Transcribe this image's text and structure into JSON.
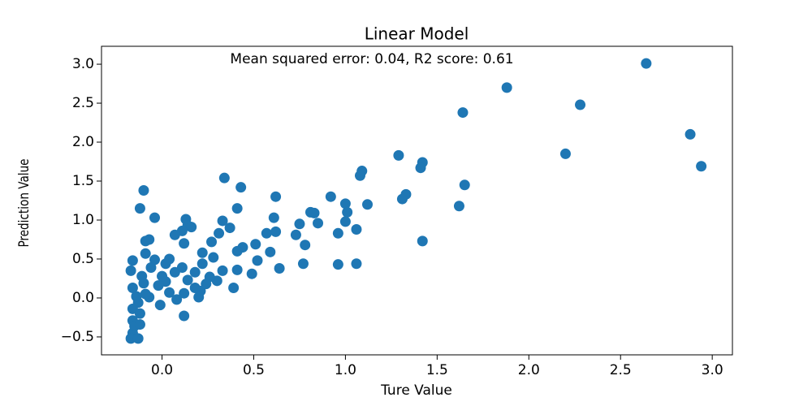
{
  "chart_data": {
    "type": "scatter",
    "title": "Linear Model",
    "annotation": "Mean squared error: 0.04, R2 score: 0.61",
    "x_label": "Ture Value",
    "y_label": "Prediction Value",
    "color": "#1f77b4",
    "xlim": [
      -0.33,
      3.11
    ],
    "ylim": [
      -0.73,
      3.23
    ],
    "xticks": [
      {
        "value": 0,
        "label": "0.0"
      },
      {
        "value": 0.5,
        "label": "0.5"
      },
      {
        "value": 1,
        "label": "1.0"
      },
      {
        "value": 1.5,
        "label": "1.5"
      },
      {
        "value": 2,
        "label": "2.0"
      },
      {
        "value": 2.5,
        "label": "2.5"
      },
      {
        "value": 3,
        "label": "3.0"
      }
    ],
    "yticks": [
      {
        "value": -0.5,
        "label": "−0.5"
      },
      {
        "value": 0,
        "label": "0.0"
      },
      {
        "value": 0.5,
        "label": "0.5"
      },
      {
        "value": 1,
        "label": "1.0"
      },
      {
        "value": 1.5,
        "label": "1.5"
      },
      {
        "value": 2,
        "label": "2.0"
      },
      {
        "value": 2.5,
        "label": "2.5"
      },
      {
        "value": 3,
        "label": "3.0"
      }
    ],
    "x": [
      2.64,
      1.88,
      2.28,
      1.64,
      2.88,
      2.2,
      2.94,
      1.29,
      1.42,
      1.41,
      1.09,
      1.08,
      1.65,
      0.34,
      0.43,
      -0.1,
      0.62,
      0.92,
      1.33,
      1.31,
      1.62,
      1.0,
      1.12,
      1.01,
      0.41,
      -0.12,
      0.81,
      0.83,
      -0.04,
      0.61,
      0.13,
      0.33,
      0.75,
      0.85,
      1.0,
      0.14,
      0.16,
      0.37,
      0.11,
      1.06,
      0.62,
      0.57,
      0.96,
      0.31,
      0.07,
      0.73,
      -0.07,
      -0.09,
      1.42,
      0.51,
      0.78,
      0.27,
      0.12,
      0.44,
      0.59,
      0.41,
      -0.09,
      0.22,
      0.52,
      0.28,
      -0.16,
      0.04,
      0.64,
      0.77,
      0.96,
      1.06,
      0.49,
      0.41,
      0.33,
      0.18,
      -0.17,
      -0.06,
      0.39,
      0.3,
      0.26,
      0.14,
      0.02,
      -0.02,
      -0.1,
      0.21,
      0.12,
      0.08,
      -0.01,
      0.2,
      -0.07,
      -0.13,
      0.12,
      -0.16,
      -0.16,
      -0.16,
      -0.16,
      -0.17,
      -0.13,
      -0.15,
      -0.12,
      -0.09,
      0.0,
      0.07,
      -0.04,
      0.02,
      0.11,
      0.22,
      -0.11,
      -0.14,
      -0.12,
      0.04,
      0.18,
      0.24
    ],
    "values": [
      3.01,
      2.7,
      2.48,
      2.38,
      2.1,
      1.85,
      1.69,
      1.83,
      1.74,
      1.67,
      1.63,
      1.57,
      1.45,
      1.54,
      1.42,
      1.38,
      1.3,
      1.3,
      1.33,
      1.27,
      1.18,
      1.21,
      1.2,
      1.1,
      1.15,
      1.15,
      1.1,
      1.09,
      1.03,
      1.03,
      1.01,
      0.99,
      0.95,
      0.96,
      0.98,
      0.93,
      0.91,
      0.9,
      0.86,
      0.88,
      0.85,
      0.83,
      0.83,
      0.83,
      0.81,
      0.81,
      0.75,
      0.73,
      0.73,
      0.69,
      0.68,
      0.72,
      0.7,
      0.65,
      0.59,
      0.6,
      0.57,
      0.58,
      0.48,
      0.52,
      0.48,
      0.5,
      0.38,
      0.44,
      0.43,
      0.44,
      0.31,
      0.36,
      0.35,
      0.33,
      0.35,
      0.39,
      0.13,
      0.22,
      0.27,
      0.23,
      0.21,
      0.16,
      0.19,
      0.09,
      0.06,
      -0.02,
      -0.09,
      0.01,
      0.01,
      -0.06,
      -0.23,
      0.13,
      -0.14,
      -0.29,
      -0.45,
      -0.52,
      -0.52,
      -0.36,
      -0.2,
      0.05,
      0.28,
      0.33,
      0.49,
      0.44,
      0.39,
      0.44,
      0.28,
      0.02,
      -0.34,
      0.07,
      0.13,
      0.18
    ]
  }
}
